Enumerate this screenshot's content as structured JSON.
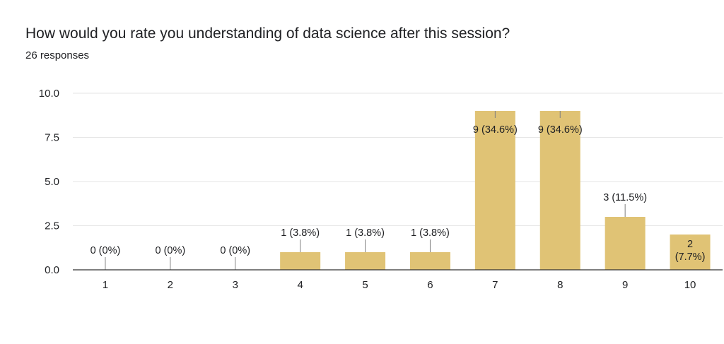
{
  "header": {
    "question": "How would you rate you understanding of data science after this session?",
    "responses": "26 responses"
  },
  "colors": {
    "bar": "#e0c375",
    "grid": "#e6e6e6",
    "axis": "#333333",
    "connector": "#808080"
  },
  "chart_data": {
    "type": "bar",
    "title": "How would you rate you understanding of data science after this session?",
    "subtitle": "26 responses",
    "categories": [
      "1",
      "2",
      "3",
      "4",
      "5",
      "6",
      "7",
      "8",
      "9",
      "10"
    ],
    "values": [
      0,
      0,
      0,
      1,
      1,
      1,
      9,
      9,
      3,
      2
    ],
    "data_labels": [
      "0 (0%)",
      "0 (0%)",
      "0 (0%)",
      "1 (3.8%)",
      "1 (3.8%)",
      "1 (3.8%)",
      "9 (34.6%)",
      "9 (34.6%)",
      "3 (11.5%)",
      "2 (7.7%)"
    ],
    "yticks": [
      "0.0",
      "2.5",
      "5.0",
      "7.5",
      "10.0"
    ],
    "ylim": [
      0,
      10
    ],
    "grid": true,
    "legend": "none"
  }
}
